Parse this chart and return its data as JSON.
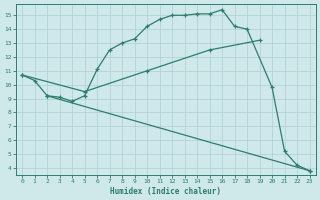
{
  "xlabel": "Humidex (Indice chaleur)",
  "xlim": [
    -0.5,
    23.5
  ],
  "ylim": [
    3.5,
    15.8
  ],
  "yticks": [
    4,
    5,
    6,
    7,
    8,
    9,
    10,
    11,
    12,
    13,
    14,
    15
  ],
  "xticks": [
    0,
    1,
    2,
    3,
    4,
    5,
    6,
    7,
    8,
    9,
    10,
    11,
    12,
    13,
    14,
    15,
    16,
    17,
    18,
    19,
    20,
    21,
    22,
    23
  ],
  "line_color": "#2d7d6e",
  "bg_color": "#cfe8ea",
  "grid_color": "#aecfd2",
  "line1_x": [
    0,
    1,
    2,
    3,
    4,
    5,
    6,
    7,
    8,
    9,
    10,
    11,
    12,
    13,
    14,
    15,
    16,
    17,
    18,
    20,
    21,
    22,
    23
  ],
  "line1_y": [
    10.7,
    10.3,
    9.2,
    9.1,
    8.8,
    9.2,
    11.1,
    12.5,
    13.0,
    13.3,
    14.2,
    14.7,
    15.0,
    15.0,
    15.1,
    15.1,
    15.4,
    14.2,
    14.0,
    9.8,
    5.2,
    4.2,
    3.8
  ],
  "line2_x": [
    0,
    5,
    10,
    15,
    19
  ],
  "line2_y": [
    10.7,
    9.5,
    11.0,
    12.5,
    13.2
  ],
  "line3_x": [
    2,
    23
  ],
  "line3_y": [
    9.2,
    3.8
  ]
}
